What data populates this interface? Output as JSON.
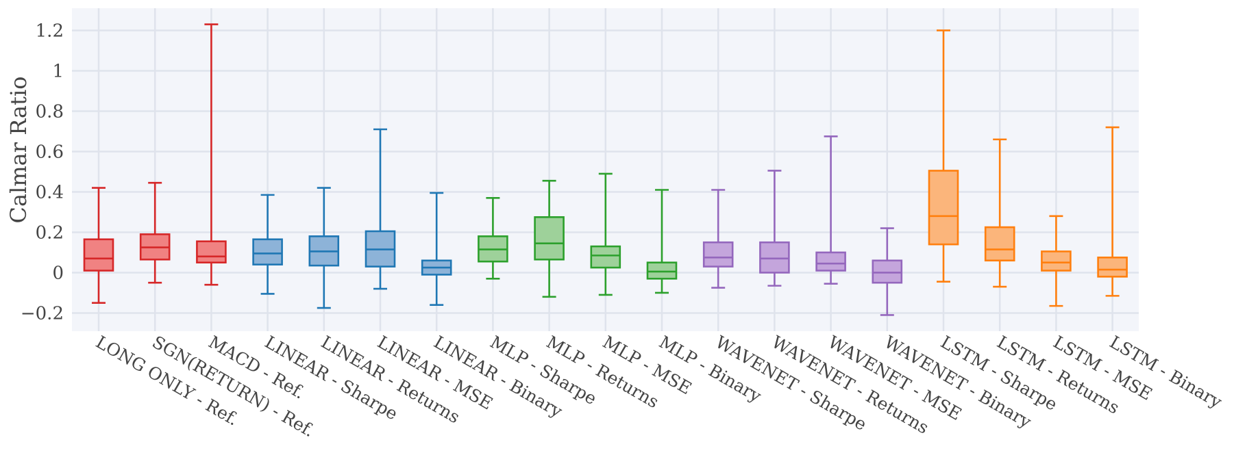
{
  "chart_data": {
    "type": "box",
    "title": "",
    "xlabel": "",
    "ylabel": "Calmar Ratio",
    "ylim": [
      -0.29,
      1.31
    ],
    "y_ticks": [
      -0.2,
      0,
      0.2,
      0.4,
      0.6,
      0.8,
      1,
      1.2
    ],
    "y_tick_labels": [
      "−0.2",
      "0",
      "0.2",
      "0.4",
      "0.6",
      "0.8",
      "1",
      "1.2"
    ],
    "grid": true,
    "categories": [
      "LONG ONLY - Ref.",
      "SGN(RETURN) - Ref.",
      "MACD - Ref.",
      "LINEAR - Sharpe",
      "LINEAR - Returns",
      "LINEAR - MSE",
      "LINEAR - Binary",
      "MLP - Sharpe",
      "MLP - Returns",
      "MLP - MSE",
      "MLP - Binary",
      "WAVENET - Sharpe",
      "WAVENET - Returns",
      "WAVENET - MSE",
      "WAVENET - Binary",
      "LSTM - Sharpe",
      "LSTM - Returns",
      "LSTM - MSE",
      "LSTM - Binary"
    ],
    "boxes": [
      {
        "min": -0.15,
        "q1": 0.01,
        "median": 0.07,
        "q3": 0.165,
        "max": 0.42,
        "group": "ref"
      },
      {
        "min": -0.05,
        "q1": 0.065,
        "median": 0.125,
        "q3": 0.19,
        "max": 0.445,
        "group": "ref"
      },
      {
        "min": -0.06,
        "q1": 0.05,
        "median": 0.08,
        "q3": 0.155,
        "max": 1.23,
        "group": "ref"
      },
      {
        "min": -0.105,
        "q1": 0.04,
        "median": 0.095,
        "q3": 0.165,
        "max": 0.385,
        "group": "linear"
      },
      {
        "min": -0.175,
        "q1": 0.035,
        "median": 0.105,
        "q3": 0.18,
        "max": 0.42,
        "group": "linear"
      },
      {
        "min": -0.08,
        "q1": 0.03,
        "median": 0.115,
        "q3": 0.205,
        "max": 0.71,
        "group": "linear"
      },
      {
        "min": -0.16,
        "q1": -0.01,
        "median": 0.025,
        "q3": 0.06,
        "max": 0.395,
        "group": "linear"
      },
      {
        "min": -0.03,
        "q1": 0.055,
        "median": 0.115,
        "q3": 0.18,
        "max": 0.37,
        "group": "mlp"
      },
      {
        "min": -0.12,
        "q1": 0.065,
        "median": 0.145,
        "q3": 0.275,
        "max": 0.455,
        "group": "mlp"
      },
      {
        "min": -0.11,
        "q1": 0.025,
        "median": 0.085,
        "q3": 0.13,
        "max": 0.49,
        "group": "mlp"
      },
      {
        "min": -0.1,
        "q1": -0.03,
        "median": 0.005,
        "q3": 0.05,
        "max": 0.41,
        "group": "mlp"
      },
      {
        "min": -0.075,
        "q1": 0.03,
        "median": 0.075,
        "q3": 0.15,
        "max": 0.41,
        "group": "wavenet"
      },
      {
        "min": -0.065,
        "q1": 0.0,
        "median": 0.07,
        "q3": 0.15,
        "max": 0.505,
        "group": "wavenet"
      },
      {
        "min": -0.055,
        "q1": 0.01,
        "median": 0.045,
        "q3": 0.1,
        "max": 0.675,
        "group": "wavenet"
      },
      {
        "min": -0.21,
        "q1": -0.05,
        "median": 0.0,
        "q3": 0.06,
        "max": 0.22,
        "group": "wavenet"
      },
      {
        "min": -0.045,
        "q1": 0.14,
        "median": 0.28,
        "q3": 0.505,
        "max": 1.2,
        "group": "lstm"
      },
      {
        "min": -0.07,
        "q1": 0.06,
        "median": 0.115,
        "q3": 0.225,
        "max": 0.66,
        "group": "lstm"
      },
      {
        "min": -0.165,
        "q1": 0.01,
        "median": 0.05,
        "q3": 0.105,
        "max": 0.28,
        "group": "lstm"
      },
      {
        "min": -0.115,
        "q1": -0.02,
        "median": 0.015,
        "q3": 0.075,
        "max": 0.72,
        "group": "lstm"
      }
    ],
    "colors": {
      "ref": {
        "line": "#d62728",
        "fill": "#f08282"
      },
      "linear": {
        "line": "#1f77b4",
        "fill": "#8db3d8"
      },
      "mlp": {
        "line": "#2ca02c",
        "fill": "#9ed19a"
      },
      "wavenet": {
        "line": "#9467bd",
        "fill": "#c4a5dc"
      },
      "lstm": {
        "line": "#ff7f0e",
        "fill": "#fbb57b"
      }
    },
    "background_color": "#f3f5fa",
    "grid_color": "#dfe3ec"
  }
}
